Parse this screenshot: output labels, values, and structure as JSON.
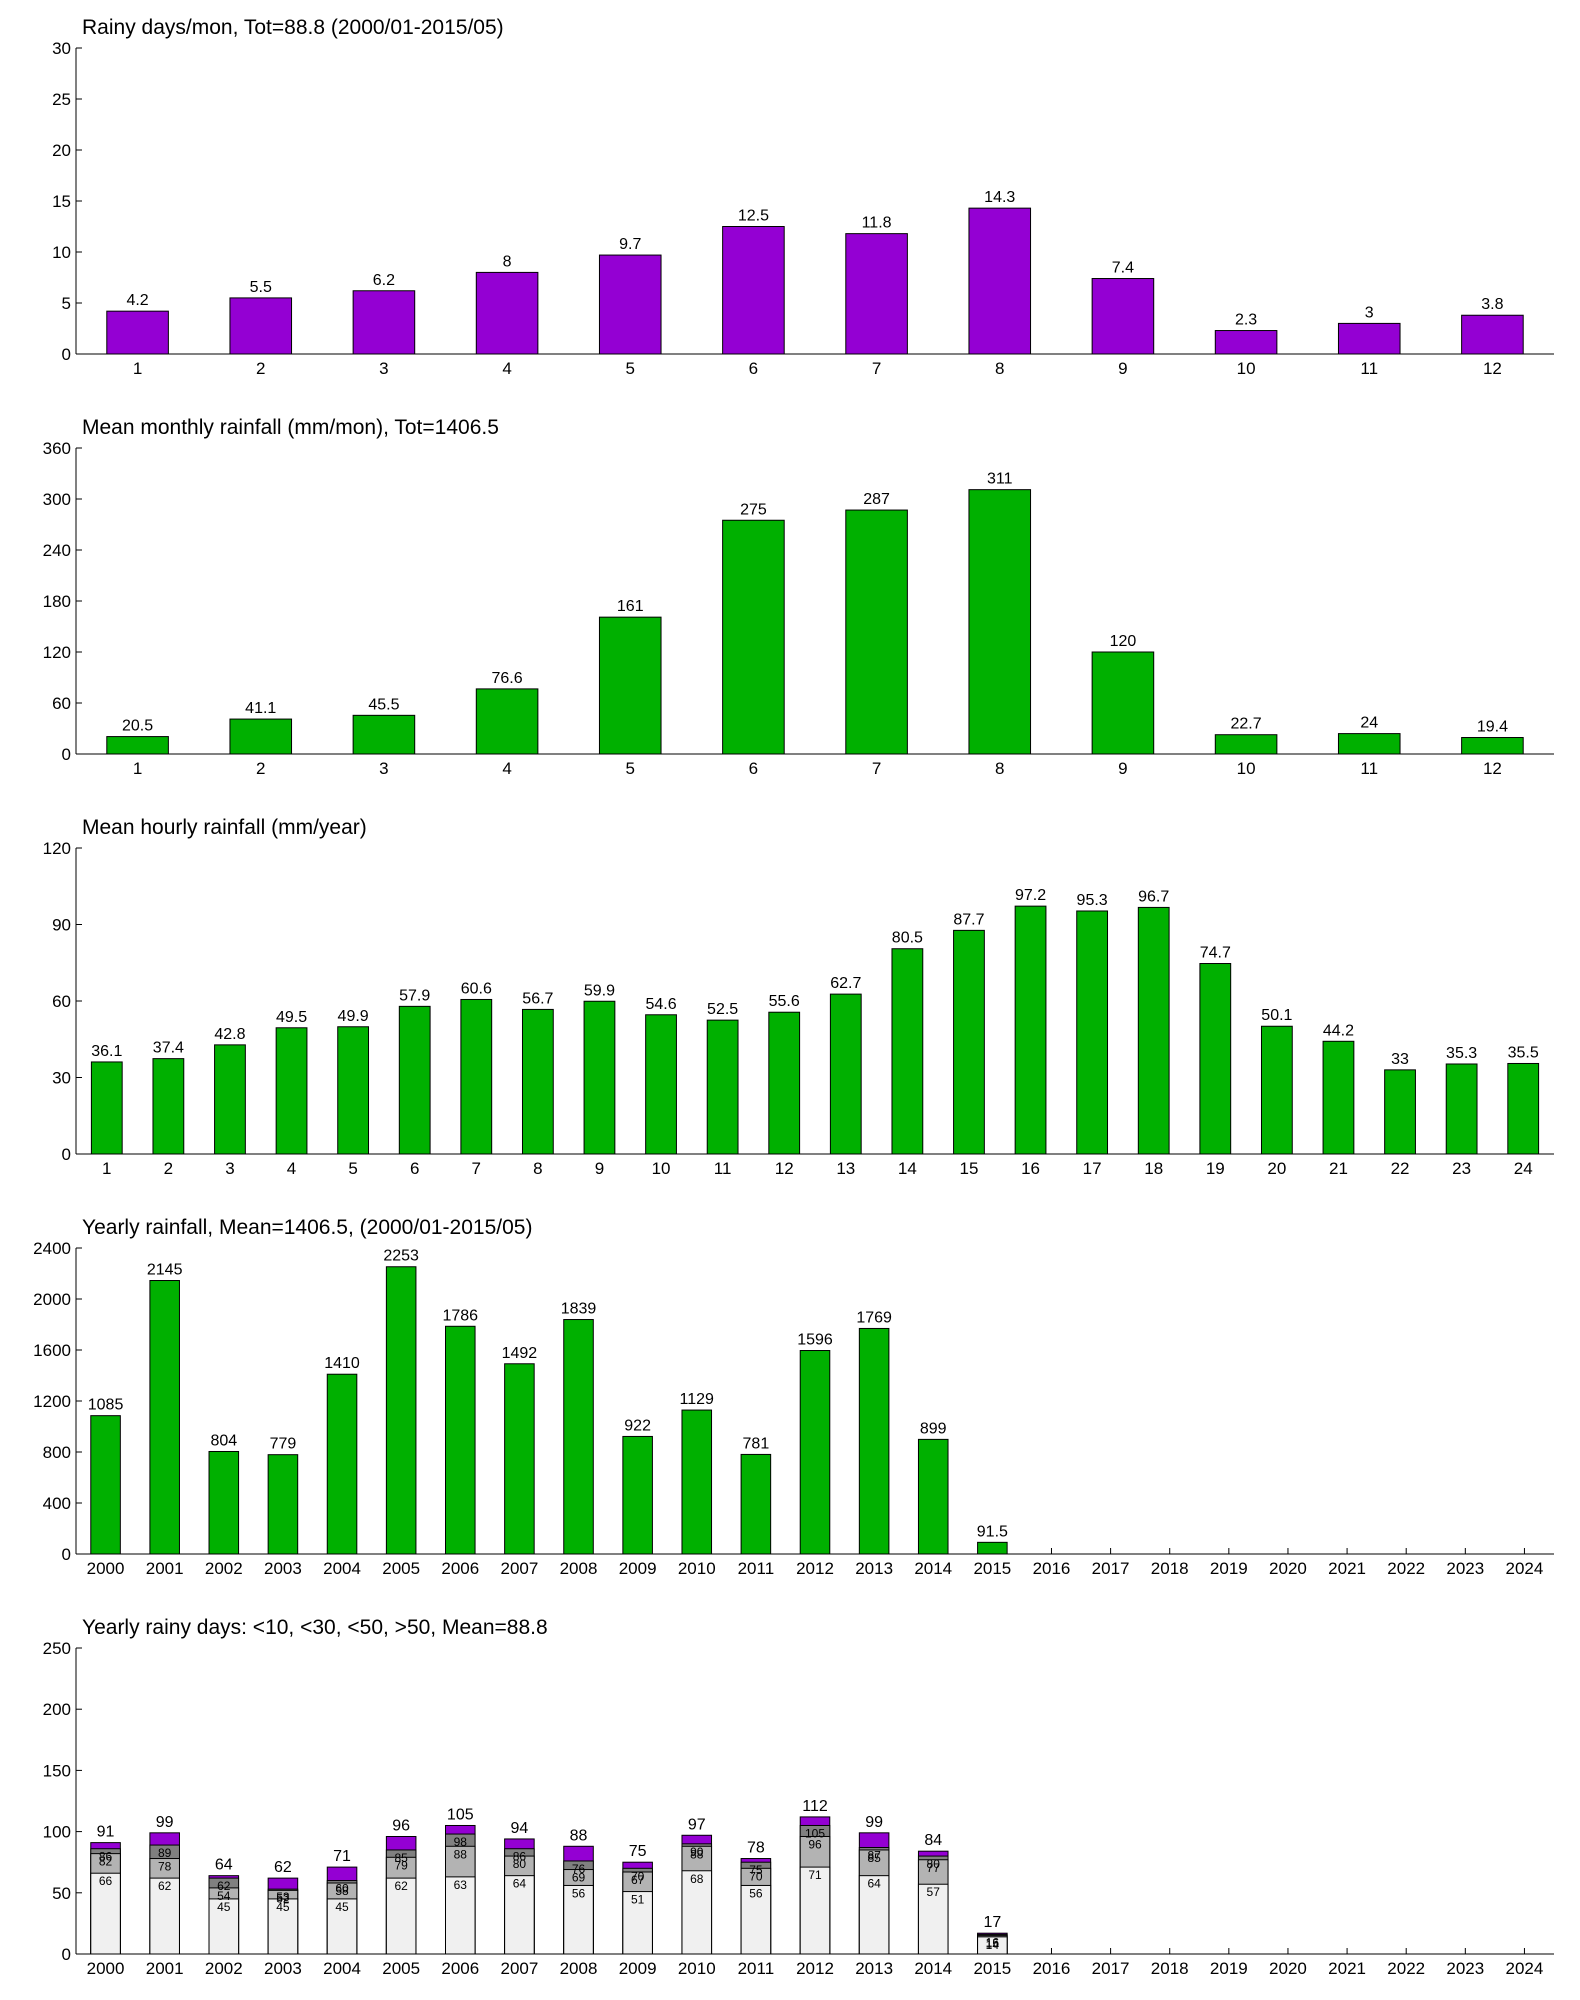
{
  "chart_data": [
    {
      "type": "bar",
      "title": "Rainy days/mon, Tot=88.8 (2000/01-2015/05)",
      "categories": [
        1,
        2,
        3,
        4,
        5,
        6,
        7,
        8,
        9,
        10,
        11,
        12
      ],
      "values": [
        4.2,
        5.5,
        6.2,
        8,
        9.7,
        12.5,
        11.8,
        14.3,
        7.4,
        2.3,
        3,
        3.8
      ],
      "color": "#9400d3",
      "ylim": [
        0,
        30
      ],
      "yticks": [
        0,
        5,
        10,
        15,
        20,
        25,
        30
      ]
    },
    {
      "type": "bar",
      "title": "Mean monthly rainfall (mm/mon), Tot=1406.5",
      "categories": [
        1,
        2,
        3,
        4,
        5,
        6,
        7,
        8,
        9,
        10,
        11,
        12
      ],
      "values": [
        20.5,
        41.1,
        45.5,
        76.6,
        161,
        275,
        287,
        311,
        120,
        22.7,
        24,
        19.4
      ],
      "color": "#00b000",
      "ylim": [
        0,
        360
      ],
      "yticks": [
        0,
        60,
        120,
        180,
        240,
        300,
        360
      ]
    },
    {
      "type": "bar",
      "title": "Mean hourly rainfall (mm/year)",
      "categories": [
        1,
        2,
        3,
        4,
        5,
        6,
        7,
        8,
        9,
        10,
        11,
        12,
        13,
        14,
        15,
        16,
        17,
        18,
        19,
        20,
        21,
        22,
        23,
        24
      ],
      "values": [
        36.1,
        37.4,
        42.8,
        49.5,
        49.9,
        57.9,
        60.6,
        56.7,
        59.9,
        54.6,
        52.5,
        55.6,
        62.7,
        80.5,
        87.7,
        97.2,
        95.3,
        96.7,
        74.7,
        50.1,
        44.2,
        33,
        35.3,
        35.5
      ],
      "color": "#00b000",
      "ylim": [
        0,
        120
      ],
      "yticks": [
        0,
        30,
        60,
        90,
        120
      ]
    },
    {
      "type": "bar",
      "title": "Yearly rainfall, Mean=1406.5, (2000/01-2015/05)",
      "categories": [
        2000,
        2001,
        2002,
        2003,
        2004,
        2005,
        2006,
        2007,
        2008,
        2009,
        2010,
        2011,
        2012,
        2013,
        2014,
        2015,
        2016,
        2017,
        2018,
        2019,
        2020,
        2021,
        2022,
        2023,
        2024
      ],
      "values": [
        1085,
        2145,
        804,
        779,
        1410,
        2253,
        1786,
        1492,
        1839,
        922,
        1129,
        781,
        1596,
        1769,
        899,
        91.5,
        null,
        null,
        null,
        null,
        null,
        null,
        null,
        null,
        null
      ],
      "color": "#00b000",
      "ylim": [
        0,
        2400
      ],
      "yticks": [
        0,
        400,
        800,
        1200,
        1600,
        2000,
        2400
      ]
    },
    {
      "type": "overlay_bar",
      "title": "Yearly rainy days: <10, <30, <50, >50, Mean=88.8",
      "categories": [
        2000,
        2001,
        2002,
        2003,
        2004,
        2005,
        2006,
        2007,
        2008,
        2009,
        2010,
        2011,
        2012,
        2013,
        2014,
        2015,
        2016,
        2017,
        2018,
        2019,
        2020,
        2021,
        2022,
        2023,
        2024
      ],
      "series": [
        {
          "color": "#f0f0f0",
          "values": [
            66,
            62,
            45,
            45,
            45,
            62,
            63,
            64,
            56,
            51,
            68,
            56,
            71,
            64,
            57,
            14,
            null,
            null,
            null,
            null,
            null,
            null,
            null,
            null,
            null
          ]
        },
        {
          "color": "#b3b3b3",
          "values": [
            82,
            78,
            54,
            52,
            58,
            79,
            88,
            80,
            69,
            67,
            88,
            70,
            96,
            85,
            77,
            15,
            null,
            null,
            null,
            null,
            null,
            null,
            null,
            null,
            null
          ]
        },
        {
          "color": "#808080",
          "values": [
            86,
            89,
            62,
            53,
            60,
            85,
            98,
            86,
            76,
            70,
            90,
            75,
            105,
            87,
            80,
            16,
            null,
            null,
            null,
            null,
            null,
            null,
            null,
            null,
            null
          ]
        },
        {
          "color": "#9400d3",
          "values": [
            91,
            99,
            64,
            62,
            71,
            96,
            105,
            94,
            88,
            75,
            97,
            78,
            112,
            99,
            84,
            17,
            null,
            null,
            null,
            null,
            null,
            null,
            null,
            null,
            null
          ]
        }
      ],
      "ylim": [
        0,
        250
      ],
      "yticks": [
        0,
        50,
        100,
        150,
        200,
        250
      ]
    }
  ]
}
